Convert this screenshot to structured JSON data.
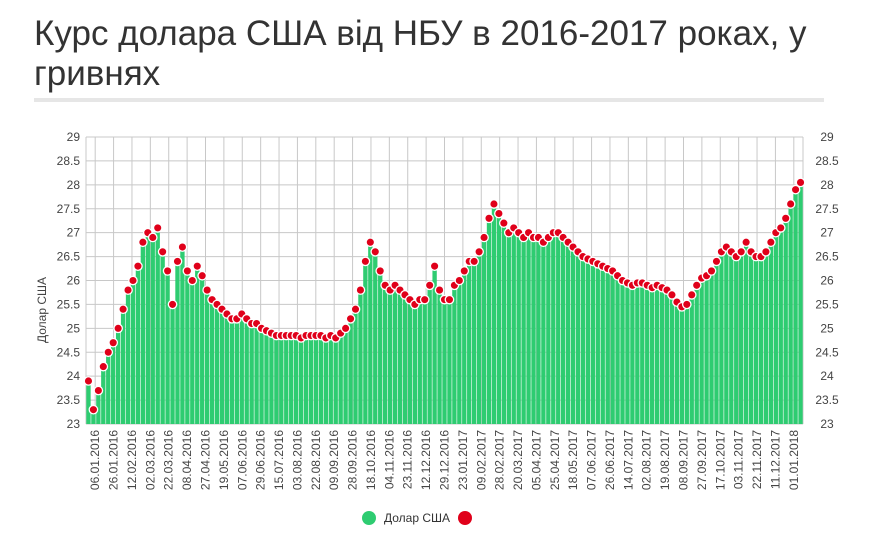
{
  "title": "Курс долара США від НБУ в 2016-2017 роках, у гривнях",
  "legend": {
    "series_label": "Долар США"
  },
  "colors": {
    "bar": "#2ecc71",
    "marker": "#e0001a",
    "grid": "#c8c8c8"
  },
  "chart_data": {
    "type": "bar",
    "ylabel": "Долар США",
    "xlabel": "",
    "ylim": [
      23,
      29
    ],
    "yticks": [
      "23",
      "23.5",
      "24",
      "24.5",
      "25",
      "25.5",
      "26",
      "26.5",
      "27",
      "27.5",
      "28",
      "28.5",
      "29"
    ],
    "xticks": [
      "06.01.2016",
      "26.01.2016",
      "12.02.2016",
      "02.03.2016",
      "22.03.2016",
      "08.04.2016",
      "27.04.2016",
      "19.05.2016",
      "07.06.2016",
      "29.06.2016",
      "15.07.2016",
      "03.08.2016",
      "22.08.2016",
      "09.09.2016",
      "28.09.2016",
      "18.10.2016",
      "04.11.2016",
      "23.11.2016",
      "12.12.2016",
      "29.12.2016",
      "23.01.2017",
      "09.02.2017",
      "28.02.2017",
      "20.03.2017",
      "05.04.2017",
      "25.04.2017",
      "18.05.2017",
      "07.06.2017",
      "26.06.2017",
      "14.07.2017",
      "02.08.2017",
      "19.08.2017",
      "08.09.2017",
      "27.09.2017",
      "17.10.2017",
      "03.11.2017",
      "22.11.2017",
      "11.12.2017",
      "01.01.2018"
    ],
    "grid": true,
    "legend_position": "bottom",
    "series": [
      {
        "name": "Долар США",
        "values": [
          23.9,
          23.3,
          23.7,
          24.2,
          24.5,
          24.7,
          25.0,
          25.4,
          25.8,
          26.0,
          26.3,
          26.8,
          27.0,
          26.9,
          27.1,
          26.6,
          26.2,
          25.5,
          26.4,
          26.7,
          26.2,
          26.0,
          26.3,
          26.1,
          25.8,
          25.6,
          25.5,
          25.4,
          25.3,
          25.2,
          25.2,
          25.3,
          25.2,
          25.1,
          25.1,
          25.0,
          24.95,
          24.9,
          24.85,
          24.85,
          24.85,
          24.85,
          24.85,
          24.8,
          24.85,
          24.85,
          24.85,
          24.85,
          24.8,
          24.85,
          24.8,
          24.9,
          25.0,
          25.2,
          25.4,
          25.8,
          26.4,
          26.8,
          26.6,
          26.2,
          25.9,
          25.8,
          25.9,
          25.8,
          25.7,
          25.6,
          25.5,
          25.6,
          25.6,
          25.9,
          26.3,
          25.8,
          25.6,
          25.6,
          25.9,
          26.0,
          26.2,
          26.4,
          26.4,
          26.6,
          26.9,
          27.3,
          27.6,
          27.4,
          27.2,
          27.0,
          27.1,
          27.0,
          26.9,
          27.0,
          26.9,
          26.9,
          26.8,
          26.9,
          27.0,
          27.0,
          26.9,
          26.8,
          26.7,
          26.6,
          26.5,
          26.45,
          26.4,
          26.35,
          26.3,
          26.25,
          26.2,
          26.1,
          26.0,
          25.95,
          25.9,
          25.95,
          25.95,
          25.9,
          25.85,
          25.9,
          25.85,
          25.8,
          25.7,
          25.55,
          25.45,
          25.5,
          25.7,
          25.9,
          26.05,
          26.1,
          26.2,
          26.4,
          26.6,
          26.7,
          26.6,
          26.5,
          26.6,
          26.8,
          26.6,
          26.5,
          26.5,
          26.6,
          26.8,
          27.0,
          27.1,
          27.3,
          27.6,
          27.9,
          28.05
        ]
      }
    ],
    "markers": {
      "values": [
        23.9,
        23.3,
        23.7,
        24.2,
        24.5,
        24.7,
        25.0,
        25.4,
        25.8,
        26.0,
        26.3,
        26.8,
        27.0,
        26.9,
        27.1,
        26.6,
        26.2,
        25.5,
        26.4,
        26.7,
        26.2,
        26.0,
        26.3,
        26.1,
        25.8,
        25.6,
        25.5,
        25.4,
        25.3,
        25.2,
        25.2,
        25.3,
        25.2,
        25.1,
        25.1,
        25.0,
        24.95,
        24.9,
        24.85,
        24.85,
        24.85,
        24.85,
        24.85,
        24.8,
        24.85,
        24.85,
        24.85,
        24.85,
        24.8,
        24.85,
        24.8,
        24.9,
        25.0,
        25.2,
        25.4,
        25.8,
        26.4,
        26.8,
        26.6,
        26.2,
        25.9,
        25.8,
        25.9,
        25.8,
        25.7,
        25.6,
        25.5,
        25.6,
        25.6,
        25.9,
        26.3,
        25.8,
        25.6,
        25.6,
        25.9,
        26.0,
        26.2,
        26.4,
        26.4,
        26.6,
        26.9,
        27.3,
        27.6,
        27.4,
        27.2,
        27.0,
        27.1,
        27.0,
        26.9,
        27.0,
        26.9,
        26.9,
        26.8,
        26.9,
        27.0,
        27.0,
        26.9,
        26.8,
        26.7,
        26.6,
        26.5,
        26.45,
        26.4,
        26.35,
        26.3,
        26.25,
        26.2,
        26.1,
        26.0,
        25.95,
        25.9,
        25.95,
        25.95,
        25.9,
        25.85,
        25.9,
        25.85,
        25.8,
        25.7,
        25.55,
        25.45,
        25.5,
        25.7,
        25.9,
        26.05,
        26.1,
        26.2,
        26.4,
        26.6,
        26.7,
        26.6,
        26.5,
        26.6,
        26.8,
        26.6,
        26.5,
        26.5,
        26.6,
        26.8,
        27.0,
        27.1,
        27.3,
        27.6,
        27.9,
        28.05
      ]
    }
  }
}
